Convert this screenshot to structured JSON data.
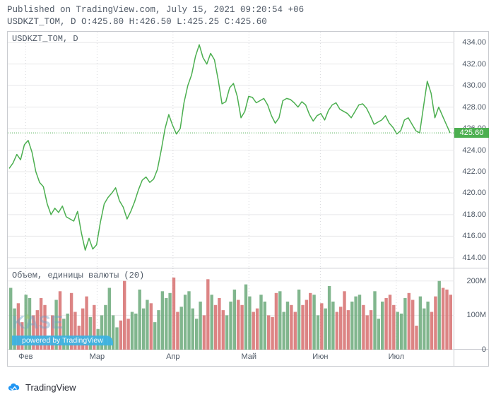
{
  "header": {
    "published_line": "Published on TradingView.com, July 15, 2021 09:20:54 +06",
    "symbol": "USDKZT_TOM",
    "interval": "D",
    "ohlc": {
      "O": "425.80",
      "H": "426.50",
      "L": "425.25",
      "C": "425.60"
    }
  },
  "footer": {
    "brand": "TradingView"
  },
  "price_chart": {
    "type": "line",
    "pane_title": "USDKZT_TOM, D",
    "line_color": "#4caf50",
    "line_width": 1.5,
    "background_color": "#ffffff",
    "grid_color": "#e8e8ea",
    "last_price": 425.6,
    "last_price_bg": "#4caf50",
    "ylim": [
      413,
      435
    ],
    "yticks": [
      414.0,
      416.0,
      418.0,
      420.0,
      422.0,
      424.0,
      426.0,
      428.0,
      430.0,
      432.0,
      434.0
    ],
    "series": [
      422.3,
      422.8,
      423.6,
      423.1,
      424.5,
      424.9,
      423.8,
      422.0,
      421.0,
      420.6,
      419.0,
      418.0,
      418.6,
      418.2,
      418.8,
      417.8,
      417.6,
      417.4,
      418.3,
      416.3,
      414.7,
      415.8,
      414.8,
      415.2,
      417.3,
      419.0,
      419.6,
      420.0,
      420.5,
      419.3,
      418.7,
      417.6,
      418.3,
      419.2,
      420.3,
      421.2,
      421.5,
      421.0,
      421.3,
      422.2,
      424.0,
      426.0,
      427.3,
      426.3,
      425.5,
      426.0,
      428.4,
      430.0,
      431.0,
      432.7,
      433.8,
      432.6,
      432.0,
      433.0,
      432.4,
      430.5,
      428.3,
      428.5,
      429.8,
      430.2,
      429.0,
      427.0,
      427.6,
      429.0,
      428.9,
      428.4,
      428.6,
      428.8,
      428.2,
      427.2,
      426.5,
      427.0,
      428.6,
      428.8,
      428.7,
      428.4,
      428.0,
      428.5,
      428.2,
      427.3,
      426.7,
      427.2,
      427.4,
      426.8,
      427.7,
      428.2,
      428.4,
      427.8,
      427.6,
      427.4,
      427.0,
      427.6,
      428.2,
      428.3,
      427.9,
      427.2,
      426.4,
      426.6,
      426.8,
      427.2,
      426.5,
      426.1,
      425.5,
      425.8,
      426.8,
      427.0,
      426.4,
      425.8,
      425.6,
      428.0,
      430.4,
      429.3,
      427.0,
      428.0,
      427.2,
      426.4,
      425.6
    ]
  },
  "volume_chart": {
    "type": "bar",
    "pane_title": "Объем, единицы валюты (20)",
    "up_color": "#6ba97a",
    "down_color": "#d66f6f",
    "background_color": "#ffffff",
    "ylim": [
      0,
      220
    ],
    "yticks": [
      0,
      100,
      200
    ],
    "ytick_labels": [
      "0",
      "100M",
      "200M"
    ],
    "values": [
      180,
      120,
      135,
      80,
      160,
      150,
      100,
      115,
      150,
      130,
      40,
      100,
      145,
      170,
      90,
      105,
      165,
      110,
      70,
      120,
      155,
      95,
      130,
      60,
      100,
      130,
      180,
      100,
      65,
      85,
      200,
      90,
      110,
      105,
      175,
      120,
      145,
      135,
      80,
      115,
      170,
      150,
      165,
      210,
      110,
      125,
      160,
      170,
      120,
      90,
      140,
      100,
      205,
      160,
      130,
      150,
      115,
      100,
      140,
      175,
      145,
      130,
      190,
      155,
      110,
      120,
      160,
      140,
      100,
      95,
      165,
      170,
      110,
      140,
      130,
      110,
      175,
      130,
      145,
      165,
      160,
      100,
      135,
      120,
      185,
      140,
      110,
      125,
      170,
      115,
      140,
      155,
      160,
      130,
      100,
      115,
      170,
      90,
      140,
      150,
      160,
      130,
      110,
      105,
      150,
      165,
      145,
      70,
      155,
      120,
      140,
      110,
      155,
      200,
      180,
      175,
      160
    ],
    "up": [
      1,
      1,
      0,
      0,
      1,
      1,
      0,
      0,
      0,
      0,
      0,
      0,
      1,
      0,
      1,
      1,
      0,
      0,
      0,
      0,
      0,
      1,
      0,
      1,
      1,
      1,
      1,
      1,
      1,
      0,
      0,
      0,
      1,
      1,
      1,
      1,
      1,
      0,
      1,
      1,
      1,
      1,
      1,
      0,
      0,
      1,
      1,
      1,
      1,
      1,
      1,
      0,
      0,
      1,
      0,
      0,
      0,
      1,
      1,
      1,
      0,
      0,
      1,
      1,
      0,
      0,
      1,
      1,
      0,
      0,
      0,
      1,
      1,
      1,
      0,
      0,
      1,
      0,
      0,
      0,
      1,
      1,
      0,
      1,
      1,
      1,
      0,
      0,
      0,
      0,
      1,
      1,
      1,
      0,
      0,
      0,
      1,
      1,
      1,
      0,
      0,
      0,
      1,
      1,
      1,
      0,
      0,
      0,
      1,
      1,
      1,
      0,
      0,
      1,
      0,
      0,
      0
    ]
  },
  "xaxis": {
    "labels": [
      "Фев",
      "Мар",
      "Апр",
      "Май",
      "Июн",
      "Июл"
    ],
    "positions_pct": [
      4,
      20,
      37,
      54,
      70,
      87
    ]
  },
  "watermark": {
    "logo_text": "KASE",
    "powered": "powered by TradingView"
  }
}
